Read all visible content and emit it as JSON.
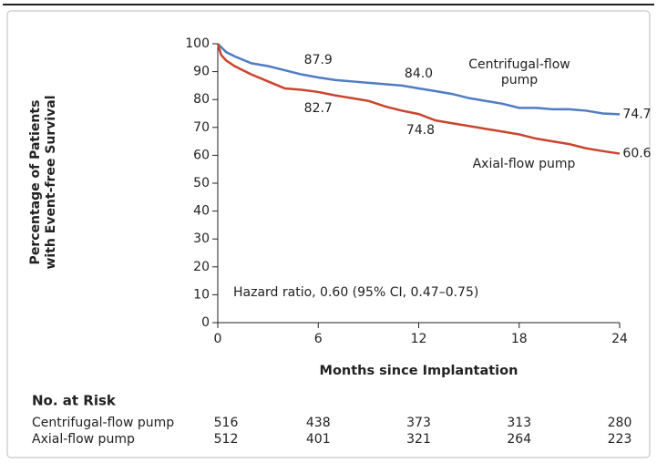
{
  "chart_data": {
    "type": "line",
    "ylabel": [
      "Percentage of Patients",
      "with Event-free Survival"
    ],
    "xlabel": "Months since Implantation",
    "xlim": [
      0,
      24
    ],
    "xticks": [
      0,
      6,
      12,
      18,
      24
    ],
    "ylim": [
      0,
      100
    ],
    "yticks": [
      0,
      10,
      20,
      30,
      40,
      50,
      60,
      70,
      80,
      90,
      100
    ],
    "annotation": "Hazard ratio, 0.60 (95% CI, 0.47–0.75)",
    "series": [
      {
        "name": "Centrifugal-flow pump",
        "color": "#4f7cc4",
        "x": [
          0,
          0.5,
          1,
          2,
          3,
          4,
          5,
          6,
          7,
          8,
          9,
          10,
          11,
          12,
          13,
          14,
          15,
          16,
          17,
          18,
          19,
          20,
          21,
          22,
          23,
          24
        ],
        "values": [
          100,
          97,
          95.5,
          93,
          92,
          90.5,
          89,
          87.9,
          87,
          86.5,
          86,
          85.5,
          85,
          84.0,
          83,
          82,
          80.5,
          79.5,
          78.5,
          77,
          77,
          76.5,
          76.5,
          76,
          75,
          74.7
        ],
        "point_labels": [
          {
            "x": 6,
            "value": 87.9,
            "label": "87.9"
          },
          {
            "x": 12,
            "value": 84.0,
            "label": "84.0"
          },
          {
            "x": 24,
            "value": 74.7,
            "label": "74.7"
          }
        ],
        "at_risk": [
          516,
          438,
          373,
          313,
          280
        ]
      },
      {
        "name": "Axial-flow pump",
        "color": "#c9452d",
        "x": [
          0,
          0.2,
          0.5,
          1,
          2,
          3,
          4,
          5,
          6,
          7,
          8,
          9,
          10,
          11,
          12,
          13,
          14,
          15,
          16,
          17,
          18,
          19,
          20,
          21,
          22,
          23,
          24
        ],
        "values": [
          100,
          96,
          94,
          92,
          89,
          86.5,
          84,
          83.5,
          82.7,
          81.5,
          80.5,
          79.5,
          77.5,
          76,
          74.8,
          72.5,
          71.5,
          70.5,
          69.5,
          68.5,
          67.5,
          66,
          65,
          64,
          62.5,
          61.5,
          60.6
        ],
        "point_labels": [
          {
            "x": 6,
            "value": 82.7,
            "label": "82.7"
          },
          {
            "x": 12,
            "value": 74.8,
            "label": "74.8"
          },
          {
            "x": 24,
            "value": 60.6,
            "label": "60.6"
          }
        ],
        "at_risk": [
          512,
          401,
          321,
          264,
          223
        ]
      }
    ],
    "risk_table_title": "No. at Risk"
  }
}
